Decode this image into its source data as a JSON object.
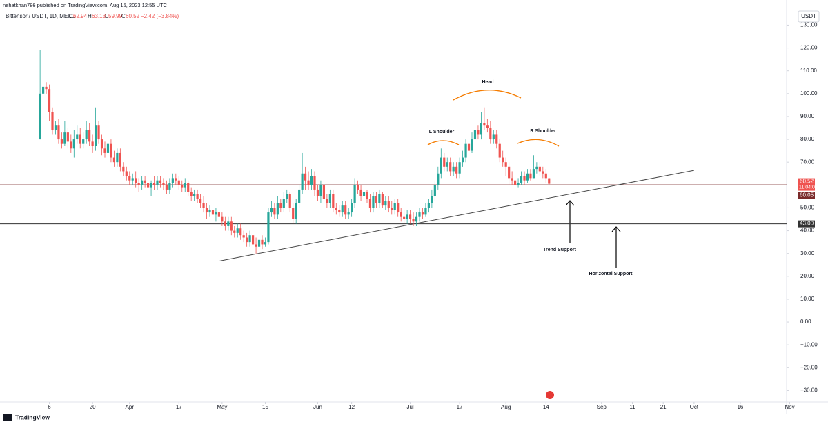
{
  "header": {
    "publisher": "nehatkhan786 published on TradingView.com, Aug 15, 2023 12:55 UTC",
    "symbol": "Bittensor / USDT, 1D, MEXC",
    "o_label": "O",
    "h_label": "H",
    "l_label": "L",
    "c_label": "C",
    "change": "−2.42 (−3.84%)",
    "currency": "USDT",
    "countdown": "11:04:06",
    "brand": "TradingView"
  },
  "chart_data": {
    "type": "candlestick",
    "up_color": "#26a69a",
    "down_color": "#ef5350",
    "grid": false,
    "xlim": [
      "2023-02-18",
      "2023-10-31"
    ],
    "ylim": [
      -35,
      141
    ],
    "yticks": [
      {
        "value": 130,
        "label": "130.00"
      },
      {
        "value": 120,
        "label": "120.00"
      },
      {
        "value": 110,
        "label": "110.00"
      },
      {
        "value": 100,
        "label": "100.00"
      },
      {
        "value": 90,
        "label": "90.00"
      },
      {
        "value": 80,
        "label": "80.00"
      },
      {
        "value": 70,
        "label": "70.00"
      },
      {
        "value": 50,
        "label": "50.00"
      },
      {
        "value": 40,
        "label": "40.00"
      },
      {
        "value": 30,
        "label": "30.00"
      },
      {
        "value": 20,
        "label": "20.00"
      },
      {
        "value": 10,
        "label": "10.00"
      },
      {
        "value": 0,
        "label": "0.00"
      },
      {
        "value": -10,
        "label": "−10.00"
      },
      {
        "value": -20,
        "label": "−20.00"
      },
      {
        "value": -30,
        "label": "−30.00"
      }
    ],
    "xticks": [
      {
        "value": "2023-03-06",
        "label": "6"
      },
      {
        "value": "2023-03-20",
        "label": "20"
      },
      {
        "value": "2023-04-01",
        "label": "Apr"
      },
      {
        "value": "2023-04-17",
        "label": "17"
      },
      {
        "value": "2023-05-01",
        "label": "May"
      },
      {
        "value": "2023-05-15",
        "label": "15"
      },
      {
        "value": "2023-06-01",
        "label": "Jun"
      },
      {
        "value": "2023-06-12",
        "label": "12"
      },
      {
        "value": "2023-07-01",
        "label": "Jul"
      },
      {
        "value": "2023-07-17",
        "label": "17"
      },
      {
        "value": "2023-08-01",
        "label": "Aug"
      },
      {
        "value": "2023-08-14",
        "label": "14"
      },
      {
        "value": "2023-09-01",
        "label": "Sep"
      },
      {
        "value": "2023-09-11",
        "label": "11"
      },
      {
        "value": "2023-09-21",
        "label": "21"
      },
      {
        "value": "2023-10-01",
        "label": "Oct"
      },
      {
        "value": "2023-10-16",
        "label": "16"
      },
      {
        "value": "2023-11-01",
        "label": "Nov"
      }
    ],
    "price_lines": [
      {
        "value": 60.05,
        "label": "60.05",
        "color": "#7a2a2a"
      },
      {
        "value": 43,
        "label": "43.00",
        "color": "#333333"
      }
    ],
    "trendline": {
      "x": [
        "2023-04-30",
        "2023-10-01"
      ],
      "values": [
        26.7,
        66.4
      ],
      "color": "#444444"
    },
    "annotations": [
      "Head",
      "L Shoulder",
      "R Shoulder",
      "Trend Support",
      "Horizontal Support"
    ],
    "categories": [
      "2023-03-03",
      "2023-03-04",
      "2023-03-05",
      "2023-03-06",
      "2023-03-07",
      "2023-03-08",
      "2023-03-09",
      "2023-03-10",
      "2023-03-11",
      "2023-03-12",
      "2023-03-13",
      "2023-03-14",
      "2023-03-15",
      "2023-03-16",
      "2023-03-17",
      "2023-03-18",
      "2023-03-19",
      "2023-03-20",
      "2023-03-21",
      "2023-03-22",
      "2023-03-23",
      "2023-03-24",
      "2023-03-25",
      "2023-03-26",
      "2023-03-27",
      "2023-03-28",
      "2023-03-29",
      "2023-03-30",
      "2023-03-31",
      "2023-04-01",
      "2023-04-02",
      "2023-04-03",
      "2023-04-04",
      "2023-04-05",
      "2023-04-06",
      "2023-04-07",
      "2023-04-08",
      "2023-04-09",
      "2023-04-10",
      "2023-04-11",
      "2023-04-12",
      "2023-04-13",
      "2023-04-14",
      "2023-04-15",
      "2023-04-16",
      "2023-04-17",
      "2023-04-18",
      "2023-04-19",
      "2023-04-20",
      "2023-04-21",
      "2023-04-22",
      "2023-04-23",
      "2023-04-24",
      "2023-04-25",
      "2023-04-26",
      "2023-04-27",
      "2023-04-28",
      "2023-04-29",
      "2023-04-30",
      "2023-05-01",
      "2023-05-02",
      "2023-05-03",
      "2023-05-04",
      "2023-05-05",
      "2023-05-06",
      "2023-05-07",
      "2023-05-08",
      "2023-05-09",
      "2023-05-10",
      "2023-05-11",
      "2023-05-12",
      "2023-05-13",
      "2023-05-14",
      "2023-05-15",
      "2023-05-16",
      "2023-05-17",
      "2023-05-18",
      "2023-05-19",
      "2023-05-20",
      "2023-05-21",
      "2023-05-22",
      "2023-05-23",
      "2023-05-24",
      "2023-05-25",
      "2023-05-26",
      "2023-05-27",
      "2023-05-28",
      "2023-05-29",
      "2023-05-30",
      "2023-05-31",
      "2023-06-01",
      "2023-06-02",
      "2023-06-03",
      "2023-06-04",
      "2023-06-05",
      "2023-06-06",
      "2023-06-07",
      "2023-06-08",
      "2023-06-09",
      "2023-06-10",
      "2023-06-11",
      "2023-06-12",
      "2023-06-13",
      "2023-06-14",
      "2023-06-15",
      "2023-06-16",
      "2023-06-17",
      "2023-06-18",
      "2023-06-19",
      "2023-06-20",
      "2023-06-21",
      "2023-06-22",
      "2023-06-23",
      "2023-06-24",
      "2023-06-25",
      "2023-06-26",
      "2023-06-27",
      "2023-06-28",
      "2023-06-29",
      "2023-06-30",
      "2023-07-01",
      "2023-07-02",
      "2023-07-03",
      "2023-07-04",
      "2023-07-05",
      "2023-07-06",
      "2023-07-07",
      "2023-07-08",
      "2023-07-09",
      "2023-07-10",
      "2023-07-11",
      "2023-07-12",
      "2023-07-13",
      "2023-07-14",
      "2023-07-15",
      "2023-07-16",
      "2023-07-17",
      "2023-07-18",
      "2023-07-19",
      "2023-07-20",
      "2023-07-21",
      "2023-07-22",
      "2023-07-23",
      "2023-07-24",
      "2023-07-25",
      "2023-07-26",
      "2023-07-27",
      "2023-07-28",
      "2023-07-29",
      "2023-07-30",
      "2023-07-31",
      "2023-08-01",
      "2023-08-02",
      "2023-08-03",
      "2023-08-04",
      "2023-08-05",
      "2023-08-06",
      "2023-08-07",
      "2023-08-08",
      "2023-08-09",
      "2023-08-10",
      "2023-08-11",
      "2023-08-12",
      "2023-08-13",
      "2023-08-14",
      "2023-08-15"
    ],
    "open": [
      80,
      100,
      103,
      102,
      92,
      84,
      86,
      80,
      78,
      83,
      79,
      76,
      80,
      82,
      78,
      80,
      84,
      79,
      77,
      86,
      80,
      76,
      74,
      78,
      72,
      70,
      74,
      68,
      66,
      64,
      62,
      63,
      61,
      60,
      62,
      61,
      59,
      61,
      60,
      62,
      61,
      60,
      58,
      61,
      63,
      62,
      60,
      59,
      61,
      57,
      55,
      56,
      54,
      52,
      50,
      48,
      49,
      47,
      48,
      46,
      44,
      42,
      44,
      40,
      39,
      41,
      38,
      37,
      35,
      38,
      34,
      33,
      36,
      34,
      35,
      48,
      50,
      47,
      52,
      50,
      54,
      56,
      50,
      45,
      52,
      58,
      65,
      62,
      60,
      64,
      58,
      55,
      60,
      54,
      52,
      56,
      50,
      49,
      48,
      51,
      47,
      48,
      52,
      60,
      58,
      55,
      57,
      54,
      50,
      55,
      52,
      56,
      51,
      53,
      50,
      49,
      52,
      48,
      46,
      45,
      47,
      45,
      44,
      46,
      48,
      47,
      50,
      52,
      55,
      60,
      65,
      72,
      68,
      70,
      66,
      68,
      65,
      70,
      72,
      78,
      75,
      80,
      84,
      82,
      87,
      86,
      85,
      80,
      82,
      78,
      72,
      70,
      68,
      63,
      62,
      60,
      61,
      64,
      62,
      65,
      63,
      67,
      68,
      66,
      65,
      62.94
    ],
    "high": [
      119,
      106,
      105,
      104,
      94,
      88,
      89,
      83,
      88,
      85,
      82,
      84,
      86,
      85,
      83,
      88,
      87,
      82,
      94,
      88,
      82,
      79,
      80,
      80,
      75,
      76,
      76,
      70,
      68,
      66,
      65,
      66,
      63,
      64,
      64,
      63,
      62,
      64,
      64,
      64,
      63,
      62,
      63,
      65,
      65,
      64,
      62,
      63,
      62,
      59,
      58,
      58,
      56,
      55,
      52,
      51,
      50,
      50,
      49,
      48,
      46,
      46,
      46,
      42,
      43,
      43,
      40,
      39,
      40,
      40,
      37,
      38,
      38,
      37,
      50,
      53,
      52,
      55,
      54,
      57,
      58,
      57,
      52,
      54,
      60,
      74,
      68,
      66,
      67,
      66,
      60,
      62,
      62,
      56,
      58,
      58,
      52,
      51,
      53,
      53,
      50,
      54,
      63,
      62,
      60,
      59,
      58,
      56,
      57,
      57,
      58,
      57,
      55,
      55,
      53,
      54,
      54,
      50,
      49,
      49,
      49,
      48,
      48,
      50,
      50,
      52,
      54,
      58,
      62,
      68,
      76,
      74,
      72,
      72,
      70,
      70,
      72,
      75,
      80,
      80,
      83,
      88,
      86,
      92,
      94,
      89,
      88,
      84,
      84,
      80,
      75,
      72,
      70,
      66,
      64,
      63,
      66,
      66,
      67,
      67,
      73,
      70,
      70,
      68,
      67,
      63.13
    ],
    "low": [
      80,
      98,
      100,
      88,
      82,
      82,
      78,
      76,
      77,
      76,
      74,
      72,
      78,
      76,
      76,
      78,
      77,
      74,
      75,
      78,
      73,
      72,
      72,
      70,
      68,
      68,
      66,
      64,
      62,
      60,
      60,
      59,
      57,
      58,
      59,
      57,
      55,
      58,
      58,
      59,
      58,
      56,
      56,
      59,
      60,
      58,
      57,
      57,
      55,
      53,
      53,
      52,
      50,
      48,
      45,
      46,
      45,
      44,
      44,
      42,
      40,
      40,
      38,
      37,
      37,
      36,
      35,
      33,
      33,
      32,
      30,
      32,
      32,
      33,
      34,
      46,
      45,
      45,
      48,
      48,
      52,
      48,
      43,
      43,
      50,
      56,
      58,
      58,
      58,
      55,
      53,
      52,
      52,
      50,
      50,
      48,
      47,
      46,
      46,
      45,
      45,
      46,
      50,
      56,
      53,
      53,
      52,
      48,
      48,
      50,
      50,
      50,
      49,
      48,
      47,
      47,
      46,
      44,
      43,
      43,
      43,
      42,
      42,
      44,
      45,
      46,
      48,
      50,
      53,
      58,
      63,
      66,
      66,
      64,
      64,
      63,
      63,
      68,
      70,
      73,
      74,
      78,
      80,
      80,
      84,
      83,
      78,
      78,
      76,
      70,
      68,
      64,
      60,
      60,
      58,
      59,
      60,
      60,
      61,
      62,
      63,
      65,
      64,
      63,
      61,
      59.99
    ],
    "close": [
      100,
      103,
      102,
      92,
      84,
      86,
      80,
      78,
      83,
      79,
      76,
      80,
      82,
      78,
      80,
      84,
      79,
      77,
      86,
      80,
      76,
      74,
      78,
      72,
      70,
      74,
      68,
      66,
      64,
      62,
      63,
      61,
      60,
      62,
      61,
      59,
      61,
      60,
      62,
      61,
      60,
      58,
      61,
      63,
      62,
      60,
      59,
      61,
      57,
      55,
      56,
      54,
      52,
      50,
      48,
      49,
      47,
      48,
      46,
      44,
      42,
      44,
      40,
      39,
      41,
      38,
      37,
      35,
      38,
      34,
      33,
      36,
      34,
      35,
      48,
      50,
      47,
      52,
      50,
      54,
      56,
      50,
      45,
      52,
      58,
      65,
      62,
      60,
      64,
      58,
      55,
      60,
      54,
      52,
      56,
      50,
      49,
      48,
      51,
      47,
      48,
      52,
      60,
      58,
      55,
      57,
      54,
      50,
      55,
      52,
      56,
      51,
      53,
      50,
      49,
      52,
      48,
      46,
      45,
      47,
      45,
      44,
      46,
      48,
      47,
      50,
      52,
      55,
      60,
      65,
      72,
      68,
      70,
      66,
      68,
      65,
      70,
      72,
      78,
      75,
      80,
      84,
      82,
      87,
      86,
      85,
      80,
      82,
      78,
      72,
      70,
      68,
      63,
      62,
      60,
      61,
      64,
      62,
      65,
      63,
      67,
      68,
      66,
      65,
      63,
      60.52
    ]
  }
}
